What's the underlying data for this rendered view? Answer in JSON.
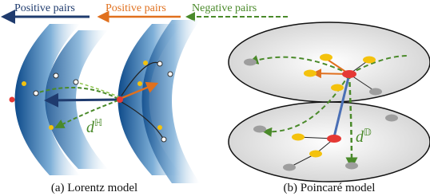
{
  "legend": [
    {
      "label": "Positive pairs"
    },
    {
      "label": "Positive pairs"
    },
    {
      "label": "Negative pairs"
    }
  ],
  "panels": [
    {
      "caption": "(a) Lorentz model",
      "distance": {
        "symbol": "d",
        "superscript": "ℍ"
      }
    },
    {
      "caption": "(b) Poincaré model",
      "distance": {
        "symbol": "d",
        "superscript": "𝔻"
      }
    }
  ]
}
